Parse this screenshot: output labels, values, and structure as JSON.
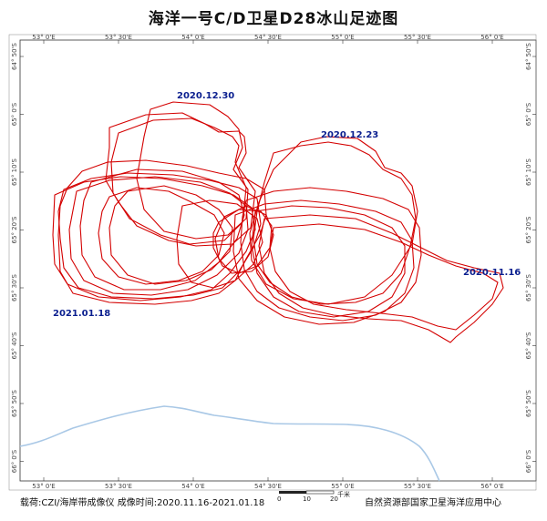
{
  "title": "海洋一号C/D卫星D28冰山足迹图",
  "lon_ticks": [
    "53° 0'E",
    "53° 30'E",
    "54° 0'E",
    "54° 30'E",
    "55° 0'E",
    "55° 30'E",
    "56° 0'E"
  ],
  "lat_ticks": [
    "64° 50'S",
    "65° 0'S",
    "65° 10'S",
    "65° 20'S",
    "65° 30'S",
    "65° 40'S",
    "65° 50'S",
    "66° 0'S"
  ],
  "date_labels": {
    "d1230": "2020.12.30",
    "d1223": "2020.12.23",
    "d1116": "2020.11.16",
    "d0118": "2021.01.18"
  },
  "footer": {
    "left": "载荷:CZI/海岸带成像仪   成像时间:2020.11.16-2021.01.18",
    "right": "自然资源部国家卫星海洋应用中心"
  },
  "scale": {
    "labels": [
      "0",
      "10",
      "20"
    ],
    "unit": "千米"
  },
  "colors": {
    "track": "#d40000",
    "coast": "#a9c8e6",
    "label": "#0a1f8f"
  }
}
